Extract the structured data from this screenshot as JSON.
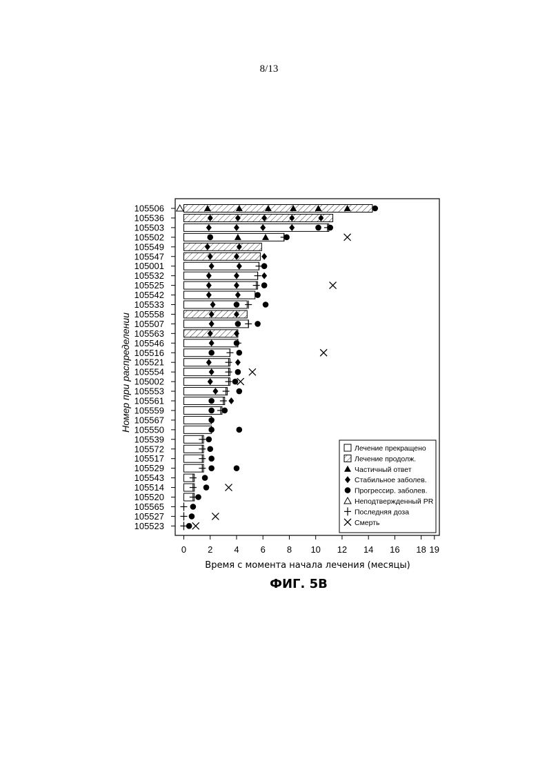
{
  "page": {
    "number": "8/13",
    "figure_caption": "ФИГ. 5В"
  },
  "chart_data": {
    "type": "swimmer",
    "xlabel": "Время с момента начала лечения (месяцы)",
    "ylabel": "Номер при распределении",
    "xlim": [
      0,
      19
    ],
    "xticks": [
      0,
      2,
      4,
      6,
      8,
      10,
      12,
      14,
      16,
      18,
      19
    ],
    "legend": {
      "position": "bottom-right",
      "entries": [
        {
          "symbol": "open-square",
          "label": "Лечение прекращено"
        },
        {
          "symbol": "hatched-square",
          "label": "Лечение продолж."
        },
        {
          "symbol": "filled-triangle",
          "label": "Частичный ответ"
        },
        {
          "symbol": "filled-diamond",
          "label": "Стабильное заболев."
        },
        {
          "symbol": "filled-circle",
          "label": "Прогрессир. заболев."
        },
        {
          "symbol": "open-triangle",
          "label": "Неподтвержденный PR"
        },
        {
          "symbol": "plus",
          "label": "Последняя доза"
        },
        {
          "symbol": "x-mark",
          "label": "Смерть"
        }
      ]
    },
    "patients": [
      {
        "id": "105506",
        "duration": 14.3,
        "ongoing": true,
        "events": [
          {
            "t": -0.3,
            "type": "upr"
          },
          {
            "t": 1.8,
            "type": "pr"
          },
          {
            "t": 4.2,
            "type": "pr"
          },
          {
            "t": 6.4,
            "type": "pr"
          },
          {
            "t": 8.3,
            "type": "pr"
          },
          {
            "t": 10.2,
            "type": "pr"
          },
          {
            "t": 12.4,
            "type": "pr"
          },
          {
            "t": 14.5,
            "type": "pd"
          }
        ]
      },
      {
        "id": "105536",
        "duration": 11.3,
        "ongoing": true,
        "events": [
          {
            "t": 2.0,
            "type": "sd"
          },
          {
            "t": 4.1,
            "type": "sd"
          },
          {
            "t": 6.1,
            "type": "sd"
          },
          {
            "t": 8.2,
            "type": "sd"
          },
          {
            "t": 10.4,
            "type": "sd"
          }
        ]
      },
      {
        "id": "105503",
        "duration": 11.0,
        "ongoing": false,
        "events": [
          {
            "t": 1.9,
            "type": "sd"
          },
          {
            "t": 4.0,
            "type": "sd"
          },
          {
            "t": 6.0,
            "type": "sd"
          },
          {
            "t": 8.2,
            "type": "sd"
          },
          {
            "t": 10.2,
            "type": "pd"
          },
          {
            "t": 10.9,
            "type": "ld"
          },
          {
            "t": 11.1,
            "type": "pd"
          }
        ]
      },
      {
        "id": "105502",
        "duration": 7.6,
        "ongoing": false,
        "events": [
          {
            "t": 2.0,
            "type": "pd"
          },
          {
            "t": 4.1,
            "type": "pr"
          },
          {
            "t": 6.2,
            "type": "pr"
          },
          {
            "t": 7.6,
            "type": "ld"
          },
          {
            "t": 7.8,
            "type": "pd"
          },
          {
            "t": 12.4,
            "type": "death"
          }
        ]
      },
      {
        "id": "105549",
        "duration": 5.9,
        "ongoing": true,
        "events": [
          {
            "t": 1.8,
            "type": "sd"
          },
          {
            "t": 4.2,
            "type": "sd"
          }
        ]
      },
      {
        "id": "105547",
        "duration": 5.8,
        "ongoing": true,
        "events": [
          {
            "t": 2.0,
            "type": "sd"
          },
          {
            "t": 4.0,
            "type": "sd"
          },
          {
            "t": 6.1,
            "type": "sd"
          }
        ]
      },
      {
        "id": "105001",
        "duration": 5.7,
        "ongoing": false,
        "events": [
          {
            "t": 2.1,
            "type": "sd"
          },
          {
            "t": 4.2,
            "type": "sd"
          },
          {
            "t": 5.7,
            "type": "ld"
          },
          {
            "t": 6.1,
            "type": "pd"
          }
        ]
      },
      {
        "id": "105532",
        "duration": 5.6,
        "ongoing": false,
        "events": [
          {
            "t": 1.9,
            "type": "sd"
          },
          {
            "t": 4.0,
            "type": "sd"
          },
          {
            "t": 5.6,
            "type": "ld"
          },
          {
            "t": 6.1,
            "type": "sd"
          }
        ]
      },
      {
        "id": "105525",
        "duration": 5.6,
        "ongoing": false,
        "events": [
          {
            "t": 1.9,
            "type": "sd"
          },
          {
            "t": 4.0,
            "type": "sd"
          },
          {
            "t": 5.5,
            "type": "ld"
          },
          {
            "t": 6.1,
            "type": "pd"
          },
          {
            "t": 11.3,
            "type": "death"
          }
        ]
      },
      {
        "id": "105542",
        "duration": 5.4,
        "ongoing": false,
        "events": [
          {
            "t": 1.9,
            "type": "sd"
          },
          {
            "t": 4.1,
            "type": "sd"
          },
          {
            "t": 5.6,
            "type": "pd"
          }
        ]
      },
      {
        "id": "105533",
        "duration": 4.8,
        "ongoing": false,
        "events": [
          {
            "t": 2.2,
            "type": "sd"
          },
          {
            "t": 4.0,
            "type": "pd"
          },
          {
            "t": 4.9,
            "type": "ld"
          },
          {
            "t": 6.2,
            "type": "pd"
          }
        ]
      },
      {
        "id": "105558",
        "duration": 4.8,
        "ongoing": true,
        "events": [
          {
            "t": 2.1,
            "type": "sd"
          },
          {
            "t": 4.0,
            "type": "sd"
          }
        ]
      },
      {
        "id": "105507",
        "duration": 4.9,
        "ongoing": false,
        "events": [
          {
            "t": 2.1,
            "type": "sd"
          },
          {
            "t": 4.1,
            "type": "pd"
          },
          {
            "t": 4.9,
            "type": "ld"
          },
          {
            "t": 5.6,
            "type": "pd"
          }
        ]
      },
      {
        "id": "105563",
        "duration": 4.1,
        "ongoing": true,
        "events": [
          {
            "t": 2.0,
            "type": "sd"
          },
          {
            "t": 4.0,
            "type": "sd"
          }
        ]
      },
      {
        "id": "105546",
        "duration": 4.1,
        "ongoing": false,
        "events": [
          {
            "t": 2.1,
            "type": "sd"
          },
          {
            "t": 4.0,
            "type": "pd"
          },
          {
            "t": 4.1,
            "type": "ld"
          }
        ]
      },
      {
        "id": "105516",
        "duration": 3.5,
        "ongoing": false,
        "events": [
          {
            "t": 2.1,
            "type": "pd"
          },
          {
            "t": 3.5,
            "type": "ld"
          },
          {
            "t": 4.2,
            "type": "pd"
          },
          {
            "t": 10.6,
            "type": "death"
          }
        ]
      },
      {
        "id": "105521",
        "duration": 3.5,
        "ongoing": false,
        "events": [
          {
            "t": 1.9,
            "type": "sd"
          },
          {
            "t": 3.4,
            "type": "ld"
          },
          {
            "t": 4.1,
            "type": "sd"
          }
        ]
      },
      {
        "id": "105554",
        "duration": 3.5,
        "ongoing": false,
        "events": [
          {
            "t": 2.1,
            "type": "sd"
          },
          {
            "t": 3.4,
            "type": "ld"
          },
          {
            "t": 4.1,
            "type": "pd"
          },
          {
            "t": 5.2,
            "type": "death"
          }
        ]
      },
      {
        "id": "105002",
        "duration": 3.5,
        "ongoing": false,
        "events": [
          {
            "t": 2.0,
            "type": "sd"
          },
          {
            "t": 3.4,
            "type": "ld"
          },
          {
            "t": 3.9,
            "type": "pd"
          },
          {
            "t": 4.3,
            "type": "death"
          }
        ]
      },
      {
        "id": "105553",
        "duration": 3.3,
        "ongoing": false,
        "events": [
          {
            "t": 2.4,
            "type": "sd"
          },
          {
            "t": 3.2,
            "type": "ld"
          },
          {
            "t": 4.2,
            "type": "pd"
          }
        ]
      },
      {
        "id": "105561",
        "duration": 3.1,
        "ongoing": false,
        "events": [
          {
            "t": 2.1,
            "type": "pd"
          },
          {
            "t": 3.0,
            "type": "ld"
          },
          {
            "t": 3.6,
            "type": "sd"
          }
        ]
      },
      {
        "id": "105559",
        "duration": 2.9,
        "ongoing": false,
        "events": [
          {
            "t": 2.1,
            "type": "pd"
          },
          {
            "t": 2.8,
            "type": "ld"
          },
          {
            "t": 3.1,
            "type": "pd"
          }
        ]
      },
      {
        "id": "105567",
        "duration": 2.1,
        "ongoing": false,
        "events": [
          {
            "t": 2.1,
            "type": "pd"
          }
        ]
      },
      {
        "id": "105550",
        "duration": 2.1,
        "ongoing": false,
        "events": [
          {
            "t": 2.1,
            "type": "pd"
          },
          {
            "t": 4.2,
            "type": "pd"
          }
        ]
      },
      {
        "id": "105539",
        "duration": 1.5,
        "ongoing": false,
        "events": [
          {
            "t": 1.4,
            "type": "ld"
          },
          {
            "t": 1.9,
            "type": "pd"
          }
        ]
      },
      {
        "id": "105572",
        "duration": 1.5,
        "ongoing": false,
        "events": [
          {
            "t": 1.4,
            "type": "ld"
          },
          {
            "t": 2.0,
            "type": "pd"
          }
        ]
      },
      {
        "id": "105517",
        "duration": 1.5,
        "ongoing": false,
        "events": [
          {
            "t": 1.4,
            "type": "ld"
          },
          {
            "t": 2.1,
            "type": "pd"
          }
        ]
      },
      {
        "id": "105529",
        "duration": 1.5,
        "ongoing": false,
        "events": [
          {
            "t": 1.4,
            "type": "ld"
          },
          {
            "t": 2.1,
            "type": "pd"
          },
          {
            "t": 4.0,
            "type": "pd"
          }
        ]
      },
      {
        "id": "105543",
        "duration": 0.8,
        "ongoing": false,
        "events": [
          {
            "t": 0.7,
            "type": "ld"
          },
          {
            "t": 1.6,
            "type": "pd"
          }
        ]
      },
      {
        "id": "105514",
        "duration": 0.8,
        "ongoing": false,
        "events": [
          {
            "t": 0.7,
            "type": "ld"
          },
          {
            "t": 1.7,
            "type": "pd"
          },
          {
            "t": 3.4,
            "type": "death"
          }
        ]
      },
      {
        "id": "105520",
        "duration": 0.8,
        "ongoing": false,
        "events": [
          {
            "t": 0.7,
            "type": "ld"
          },
          {
            "t": 1.1,
            "type": "pd"
          }
        ]
      },
      {
        "id": "105565",
        "duration": 0.0,
        "ongoing": false,
        "events": [
          {
            "t": 0.0,
            "type": "ld"
          },
          {
            "t": 0.7,
            "type": "pd"
          }
        ]
      },
      {
        "id": "105527",
        "duration": 0.0,
        "ongoing": false,
        "events": [
          {
            "t": 0.0,
            "type": "ld"
          },
          {
            "t": 0.6,
            "type": "pd"
          },
          {
            "t": 2.4,
            "type": "death"
          }
        ]
      },
      {
        "id": "105523",
        "duration": 0.0,
        "ongoing": false,
        "events": [
          {
            "t": 0.0,
            "type": "ld"
          },
          {
            "t": 0.4,
            "type": "pd"
          },
          {
            "t": 0.9,
            "type": "death"
          }
        ]
      }
    ]
  }
}
